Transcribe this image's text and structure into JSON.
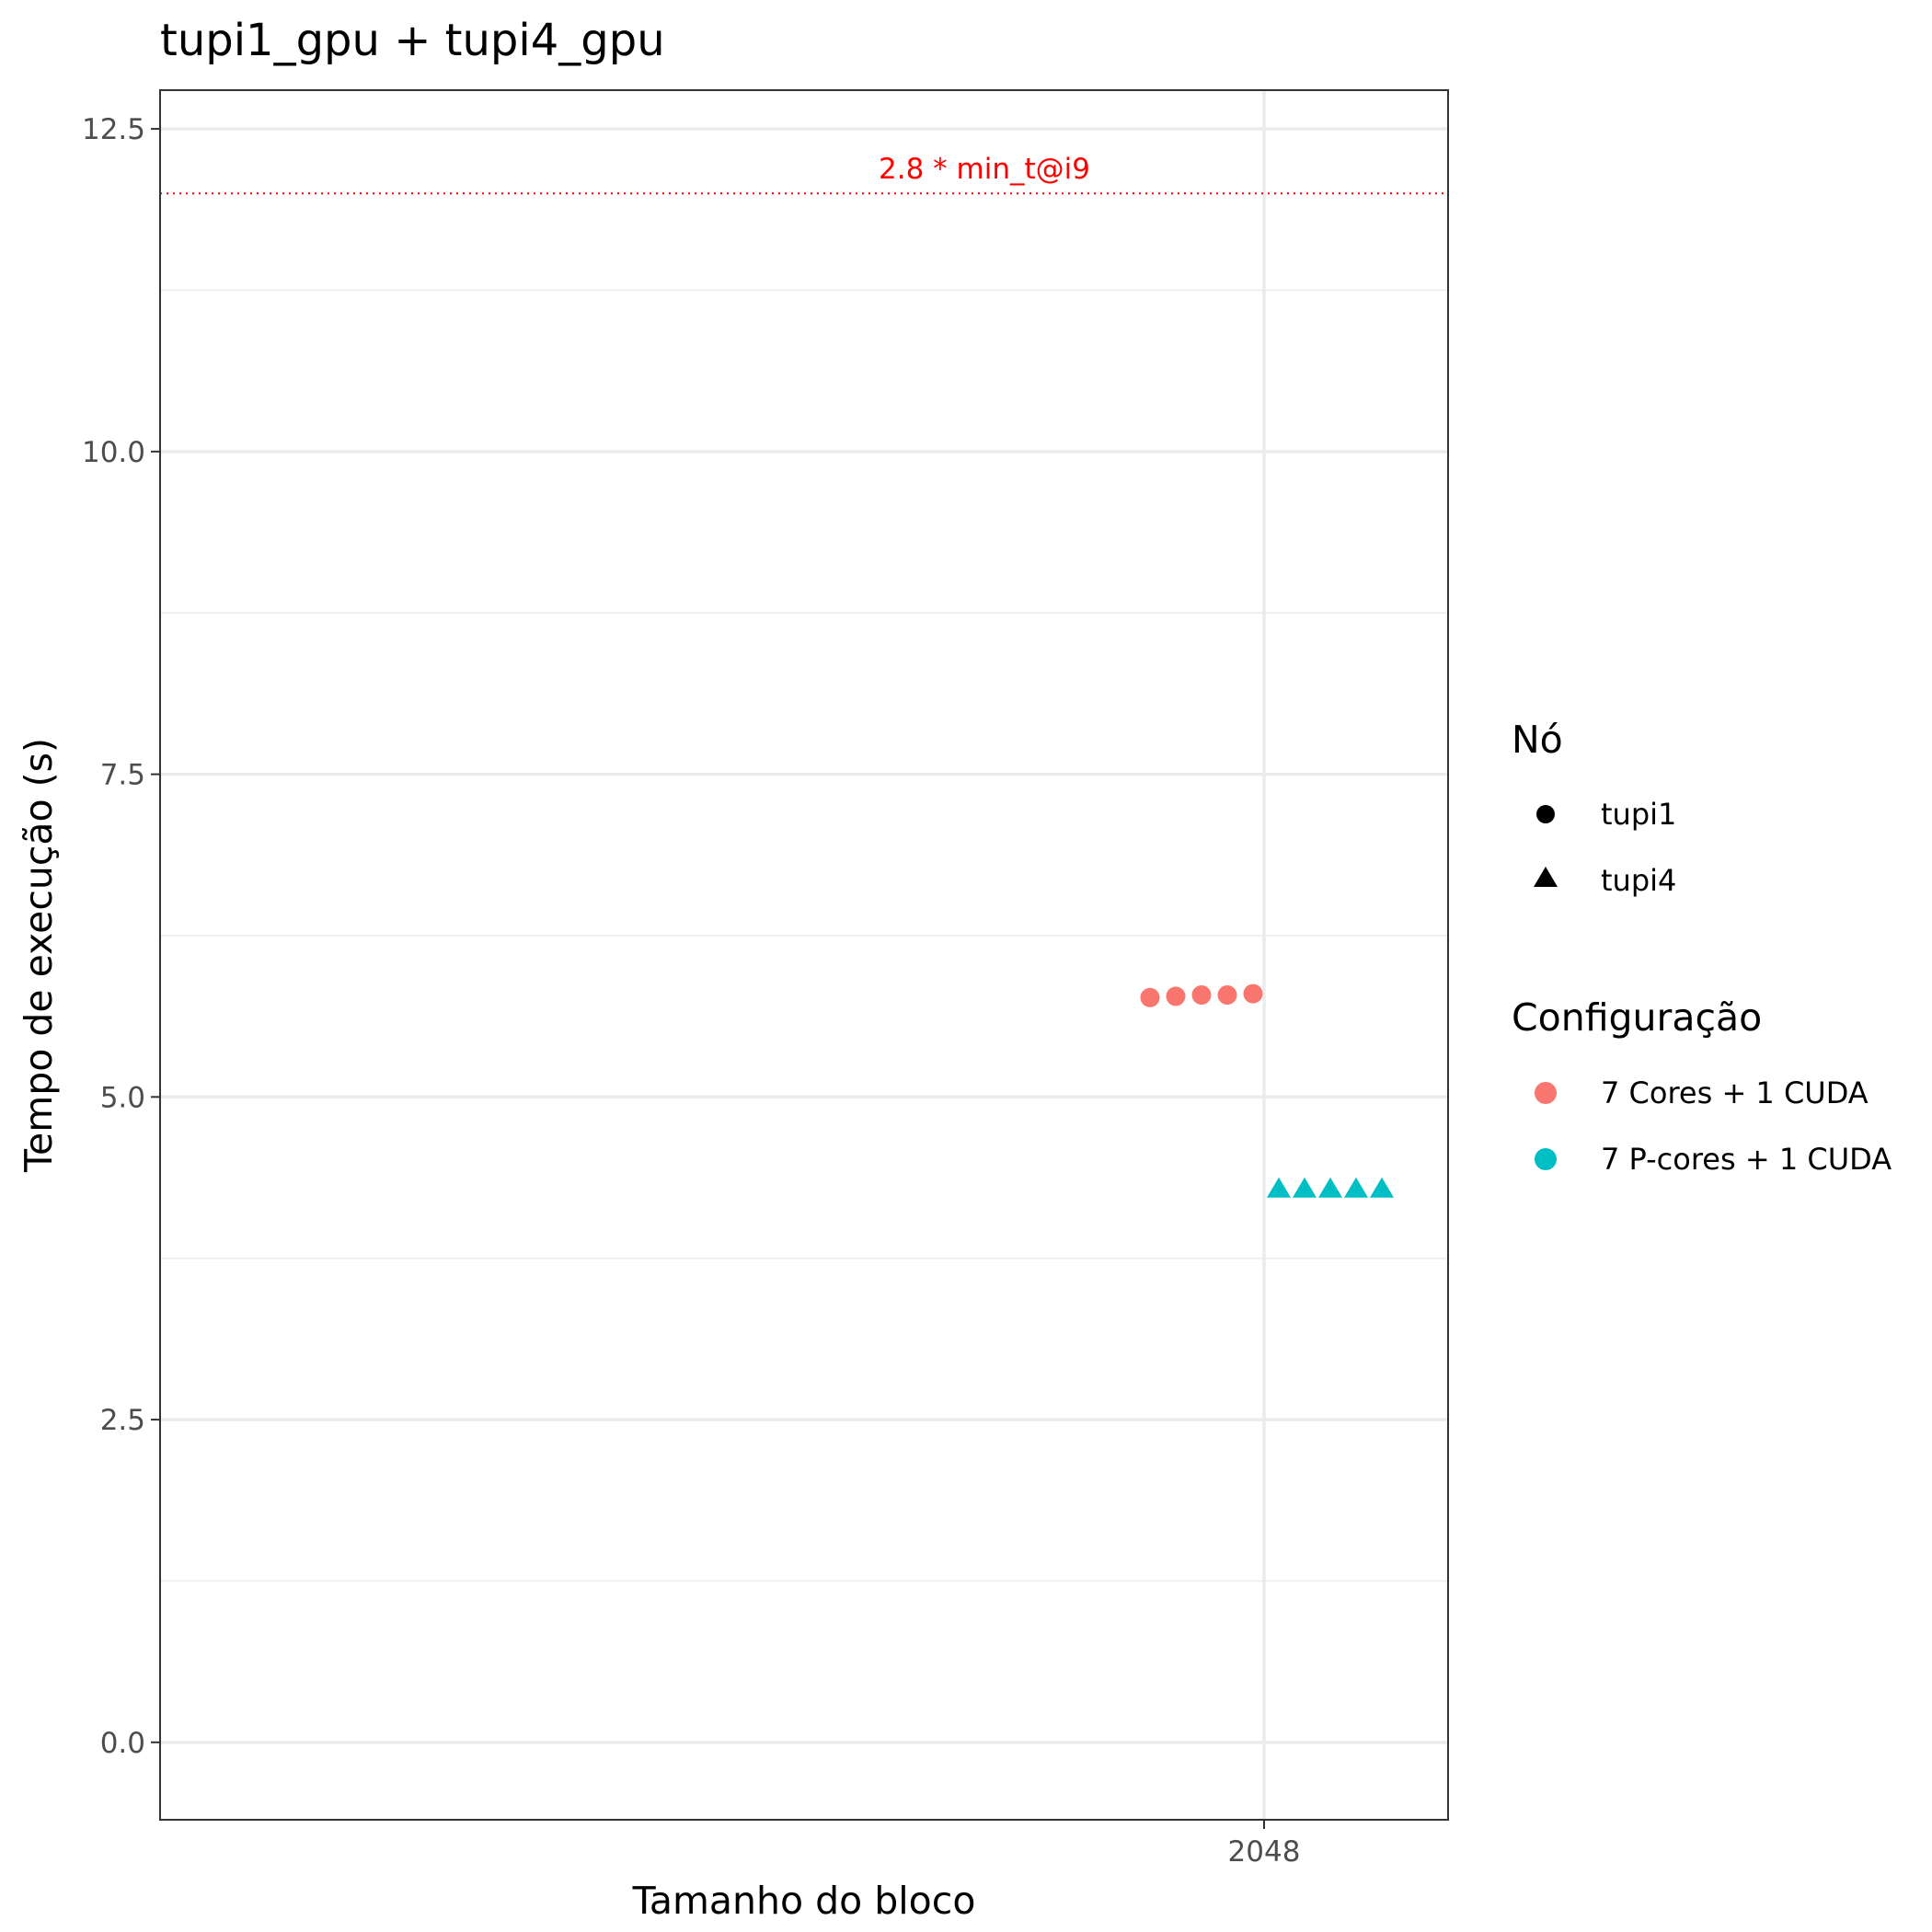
{
  "chart_data": {
    "type": "scatter",
    "title": "tupi1_gpu + tupi4_gpu",
    "xlabel": "Tamanho do bloco",
    "ylabel": "Tempo de execução (s)",
    "x_ticks": [
      "2048"
    ],
    "y_ticks": [
      "0.0",
      "2.5",
      "5.0",
      "7.5",
      "10.0",
      "12.5"
    ],
    "ylim": [
      -0.6,
      12.8
    ],
    "grid": true,
    "reference_line": {
      "y": 12.0,
      "label": "2.8 * min_t@i9",
      "color": "#ff0000",
      "style": "dotted"
    },
    "series": [
      {
        "node": "tupi1",
        "config": "7 Cores + 1 CUDA",
        "shape": "circle",
        "color": "#f8766d",
        "x": [
          "2048",
          "2048",
          "2048",
          "2048",
          "2048"
        ],
        "y": [
          5.77,
          5.78,
          5.79,
          5.79,
          5.8
        ]
      },
      {
        "node": "tupi4",
        "config": "7 P-cores + 1 CUDA",
        "shape": "triangle",
        "color": "#00bfc4",
        "x": [
          "2048",
          "2048",
          "2048",
          "2048",
          "2048"
        ],
        "y": [
          4.28,
          4.28,
          4.28,
          4.28,
          4.28
        ]
      }
    ],
    "legend": {
      "position": "right",
      "shape_title": "Nó",
      "shape_items": [
        {
          "label": "tupi1",
          "shape": "circle"
        },
        {
          "label": "tupi4",
          "shape": "triangle"
        }
      ],
      "color_title": "Configuração",
      "color_items": [
        {
          "label": "7 Cores + 1 CUDA",
          "color": "#f8766d"
        },
        {
          "label": "7 P-cores + 1 CUDA",
          "color": "#00bfc4"
        }
      ]
    }
  }
}
